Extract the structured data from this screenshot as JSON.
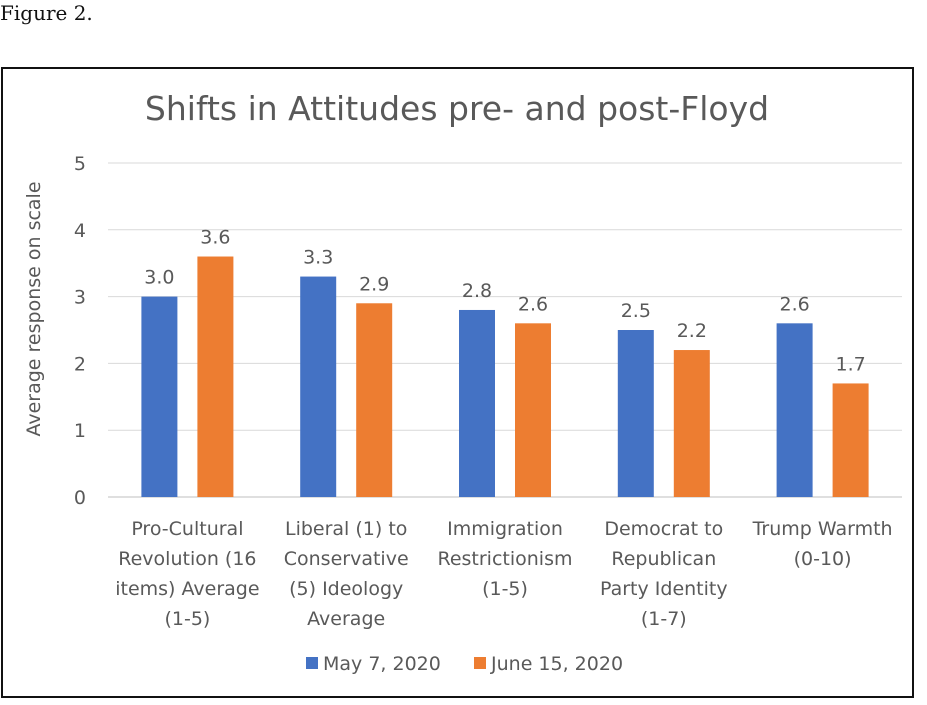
{
  "caption": "Figure 2.",
  "chart_data": {
    "type": "bar",
    "title": "Shifts in Attitudes pre- and post-Floyd",
    "xlabel": "",
    "ylabel": "Average response on scale",
    "ylim": [
      0,
      5
    ],
    "yticks": [
      "0",
      "1",
      "2",
      "3",
      "4",
      "5"
    ],
    "grid": true,
    "legend_position": "bottom",
    "categories": [
      [
        "Pro-Cultural",
        "Revolution (16",
        "items) Average",
        "(1-5)"
      ],
      [
        "Liberal (1) to",
        "Conservative",
        "(5) Ideology",
        "Average"
      ],
      [
        "Immigration",
        "Restrictionism",
        "(1-5)"
      ],
      [
        "Democrat to",
        "Republican",
        "Party Identity",
        "(1-7)"
      ],
      [
        "Trump Warmth",
        "(0-10)"
      ]
    ],
    "series": [
      {
        "name": "May 7, 2020",
        "color": "#4472C4",
        "values": [
          3.0,
          3.3,
          2.8,
          2.5,
          2.6
        ],
        "labels": [
          "3.0",
          "3.3",
          "2.8",
          "2.5",
          "2.6"
        ]
      },
      {
        "name": "June 15, 2020",
        "color": "#ED7D31",
        "values": [
          3.6,
          2.9,
          2.6,
          2.2,
          1.7
        ],
        "labels": [
          "3.6",
          "2.9",
          "2.6",
          "2.2",
          "1.7"
        ]
      }
    ]
  }
}
